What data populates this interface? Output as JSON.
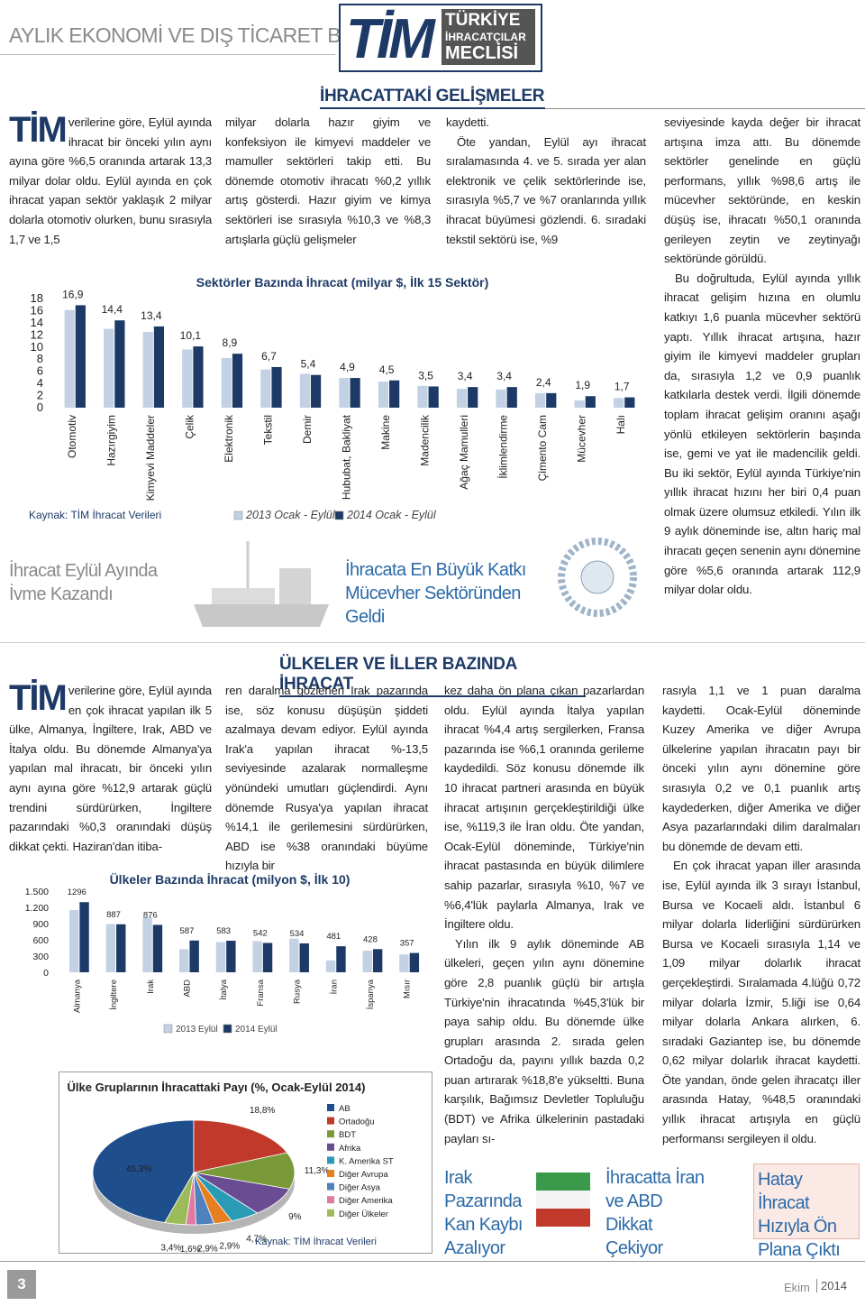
{
  "header": {
    "title": "AYLIK EKONOMİ VE DIŞ TİCARET BÜLTENİ",
    "logo": "TİM",
    "logo_line1": "TÜRKİYE",
    "logo_line2": "İHRACATÇILAR",
    "logo_line3": "MECLİSİ"
  },
  "section1": {
    "heading": "İHRACATTAKİ GELİŞMELER",
    "dropcap": "TİM",
    "columns": [
      [
        "verilerine göre, Eylül ayında ihracat bir önceki yılın aynı ayına göre %6,5 oranında artarak 13,3 milyar dolar oldu. Eylül ayında en çok ihracat yapan sektör yaklaşık 2 milyar dolarla otomotiv olurken, bunu sırasıyla 1,7 ve 1,5"
      ],
      [
        "milyar dolarla hazır giyim ve konfeksiyon ile kimyevi maddeler ve mamuller sektörleri takip etti. Bu dönemde otomotiv ihracatı %0,2 yıllık artış gösterdi. Hazır giyim ve kimya sektörleri ise sırasıyla %10,3 ve %8,3 artışlarla güçlü gelişmeler"
      ],
      [
        "kaydetti.",
        "Öte yandan, Eylül ayı ihracat sıralamasında 4. ve 5. sırada yer alan elektronik ve çelik sektörlerinde ise, sırasıyla %5,7 ve %7 oranlarında yıllık ihracat büyümesi gözlendi. 6. sıradaki tekstil sektörü ise, %9"
      ],
      [
        "seviyesinde kayda değer bir ihracat artışına imza attı. Bu dönemde sektörler genelinde en güçlü performans, yıllık %98,6 artış ile mücevher sektöründe, en keskin düşüş ise, ihracatı %50,1 oranında gerileyen zeytin ve zeytinyağı sektöründe görüldü.",
        "Bu doğrultuda, Eylül ayında yıllık ihracat gelişim hızına en olumlu katkıyı 1,6 puanla mücevher sektörü yaptı. Yıllık ihracat artışına, hazır giyim ile kimyevi maddeler grupları da, sırasıyla 1,2 ve 0,9 puanlık katkılarla destek verdi. İlgili dönemde toplam ihracat gelişim oranını aşağı yönlü etkileyen sektörlerin başında ise, gemi ve yat ile madencilik geldi. Bu iki sektör, Eylül ayında Türkiye'nin yıllık ihracat hızını her biri 0,4 puan olmak üzere olumsuz etkiledi. Yılın ilk 9 aylık döneminde ise, altın hariç mal ihracatı geçen senenin aynı dönemine göre %5,6 oranında artarak 112,9 milyar dolar oldu."
      ]
    ],
    "caption1": "İhracat Eylül Ayında İvme Kazandı",
    "caption2": "İhracata En Büyük Katkı Mücevher Sektöründen Geldi"
  },
  "section2": {
    "heading": "ÜLKELER VE İLLER BAZINDA İHRACAT",
    "dropcap": "TİM",
    "columns": [
      [
        "verilerine göre, Eylül ayında en çok ihracat yapılan ilk 5 ülke, Almanya, İngiltere, Irak, ABD ve İtalya oldu. Bu dönemde Almanya'ya yapılan mal ihracatı, bir önceki yılın aynı ayına göre %12,9 artarak güçlü trendini sürdürürken, İngiltere pazarındaki %0,3 oranındaki düşüş dikkat çekti. Haziran'dan itiba-"
      ],
      [
        "ren daralma gözlenen Irak pazarında ise, söz konusu düşüşün şiddeti azalmaya devam ediyor. Eylül ayında Irak'a yapılan ihracat %-13,5 seviyesinde azalarak normalleşme yönündeki umutları güçlendirdi. Aynı dönemde Rusya'ya yapılan ihracat %14,1 ile gerilemesini sürdürürken, ABD ise %38 oranındaki büyüme hızıyla bir"
      ],
      [
        "kez daha ön plana çıkan pazarlardan oldu. Eylül ayında İtalya yapılan ihracat %4,4 artış sergilerken, Fransa pazarında ise %6,1 oranında gerileme kaydedildi. Söz konusu dönemde ilk 10 ihracat partneri arasında en büyük ihracat artışının gerçekleştirildiği ülke ise, %119,3 ile İran oldu. Öte yandan, Ocak-Eylül döneminde, Türkiye'nin ihracat pastasında en büyük dilimlere sahip pazarlar, sırasıyla %10, %7 ve %6,4'lük paylarla Almanya, Irak ve İngiltere oldu.",
        "Yılın ilk 9 aylık döneminde AB ülkeleri, geçen yılın aynı dönemine göre 2,8 puanlık güçlü bir artışla Türkiye'nin ihracatında %45,3'lük bir paya sahip oldu. Bu dönemde ülke grupları arasında 2. sırada gelen Ortadoğu da, payını yıllık bazda 0,2 puan artırarak %18,8'e yükseltti. Buna karşılık, Bağımsız Devletler Topluluğu (BDT) ve Afrika ülkelerinin pastadaki payları sı-"
      ],
      [
        "rasıyla 1,1 ve 1 puan daralma kaydetti. Ocak-Eylül döneminde Kuzey Amerika ve diğer Avrupa ülkelerine yapılan ihracatın payı bir önceki yılın aynı dönemine göre sırasıyla 0,2 ve 0,1 puanlık artış kaydederken, diğer Amerika ve diğer Asya pazarlarındaki dilim daralmaları bu dönemde de devam etti.",
        "En çok ihracat yapan iller arasında ise, Eylül ayında ilk 3 sırayı İstanbul, Bursa ve Kocaeli aldı. İstanbul 6 milyar dolarla liderliğini sürdürürken Bursa ve Kocaeli sırasıyla 1,14 ve 1,09 milyar dolarlık ihracat gerçekleştirdi. Sıralamada 4.lüğü 0,72 milyar dolarla İzmir, 5.liği ise 0,64 milyar dolarla Ankara alırken, 6. sıradaki Gaziantep ise, bu dönemde 0,62 milyar dolarlık ihracat kaydetti. Öte yandan, önde gelen ihracatçı iller arasında Hatay, %48,5 oranındaki yıllık ihracat artışıyla en güçlü performansı sergileyen il oldu."
      ]
    ],
    "caption1": "Irak Pazarında Kan Kaybı Azalıyor",
    "caption2": "İhracatta İran ve ABD Dikkat Çekiyor",
    "caption3": "Hatay İhracat Hızıyla Ön Plana Çıktı"
  },
  "chart_data": [
    {
      "type": "bar",
      "title": "Sektörler Bazında İhracat (milyar $, İlk 15 Sektör)",
      "source": "Kaynak: TİM İhracat Verileri",
      "categories": [
        "Otomotiv",
        "Hazırgiyim",
        "Kimyevi Maddeler",
        "Çelik",
        "Elektronik",
        "Tekstil",
        "Demir",
        "Hububat, Bakliyat",
        "Makine",
        "Madencilik",
        "Ağaç Mamulleri",
        "İklimlendirme",
        "Çimento Cam",
        "Mücevher",
        "Halı"
      ],
      "series": [
        {
          "name": "2013 Ocak - Eylül",
          "color": "#c3d1e4",
          "values": [
            16.1,
            13.0,
            12.5,
            9.6,
            8.2,
            6.3,
            5.6,
            4.9,
            4.3,
            3.6,
            3.1,
            3.0,
            2.4,
            1.2,
            1.6
          ]
        },
        {
          "name": "2014 Ocak - Eylül",
          "color": "#1d3a66",
          "values": [
            16.9,
            14.4,
            13.4,
            10.1,
            8.9,
            6.7,
            5.4,
            4.9,
            4.5,
            3.5,
            3.4,
            3.4,
            2.4,
            1.9,
            1.7
          ],
          "value_labels": [
            "16,9",
            "14,4",
            "13,4",
            "10,1",
            "8,9",
            "6,7",
            "5,4",
            "4,9",
            "4,5",
            "3,5",
            "3,4",
            "3,4",
            "2,4",
            "1,9",
            "1,7"
          ]
        }
      ],
      "ylim": [
        0,
        18
      ],
      "yticks": [
        0,
        2,
        4,
        6,
        8,
        10,
        12,
        14,
        16,
        18
      ],
      "grid": false
    },
    {
      "type": "bar",
      "title": "Ülkeler Bazında İhracat (milyon $, İlk 10)",
      "categories": [
        "Almanya",
        "İngiltere",
        "Irak",
        "ABD",
        "İtalya",
        "Fransa",
        "Rusya",
        "İran",
        "İspanya",
        "Mısır"
      ],
      "series": [
        {
          "name": "2013 Eylül",
          "color": "#c3d1e4",
          "values": [
            1148,
            890,
            1013,
            425,
            558,
            577,
            622,
            219,
            400,
            330
          ]
        },
        {
          "name": "2014 Eylül",
          "color": "#1d3a66",
          "values": [
            1296,
            887,
            876,
            587,
            583,
            542,
            534,
            481,
            428,
            357
          ]
        }
      ],
      "ylim": [
        0,
        1500
      ],
      "yticks": [
        0,
        300,
        600,
        900,
        {
          "value": 1200,
          "label": "1.200"
        },
        {
          "value": 1500,
          "label": "1.500"
        }
      ],
      "grid": false
    },
    {
      "type": "pie",
      "title": "Ülke Gruplarının İhracattaki Payı (%, Ocak-Eylül 2014)",
      "source": "Kaynak: TİM İhracat Verileri",
      "categories": [
        "AB",
        "Ortadoğu",
        "BDT",
        "Afrika",
        "K. Amerika ST",
        "Diğer Avrupa",
        "Diğer Asya",
        "Diğer Amerika",
        "Diğer Ülkeler"
      ],
      "values": [
        45.3,
        18.8,
        11.3,
        9,
        4.7,
        2.9,
        2.9,
        1.6,
        3.4
      ],
      "value_labels": [
        "45,3%",
        "18,8%",
        "11,3%",
        "9%",
        "4,7%",
        "2,9%",
        "2,9%",
        "1,6%",
        "3,4%"
      ],
      "colors": [
        "#1f4e8c",
        "#c0392b",
        "#7a9a3a",
        "#6a4c93",
        "#2a9bb5",
        "#e67e22",
        "#4f81bd",
        "#e07aa0",
        "#9bbb59"
      ]
    }
  ],
  "footer": {
    "page": "3",
    "month": "Ekim",
    "year": "2014"
  }
}
